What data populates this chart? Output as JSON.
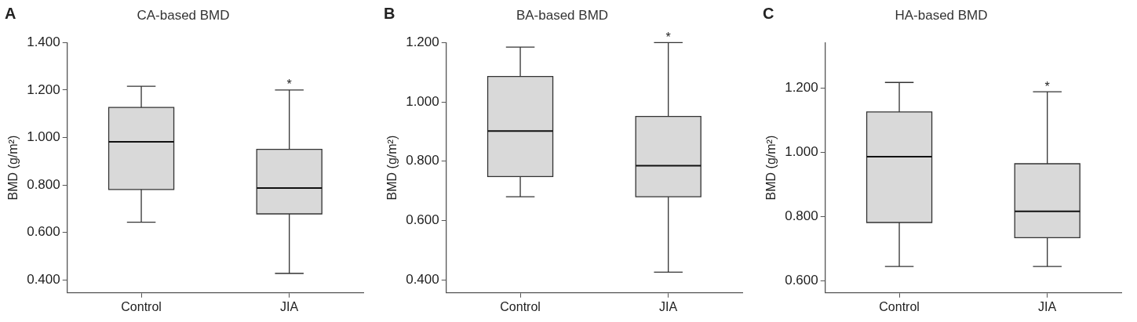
{
  "chart_data": [
    {
      "type": "box",
      "title": "CA-based BMD",
      "ylabel": "BMD (g/m²)",
      "categories": [
        "Control",
        "JIA"
      ],
      "color": "#d9d9d9",
      "grid": false,
      "ylim": [
        0.345,
        1.4
      ],
      "yticks": [
        {
          "value": 0.4,
          "label": "0.400"
        },
        {
          "value": 0.6,
          "label": "0.600"
        },
        {
          "value": 0.8,
          "label": "0.800"
        },
        {
          "value": 1.0,
          "label": "1.000"
        },
        {
          "value": 1.2,
          "label": "1.200"
        },
        {
          "value": 1.4,
          "label": "1.400"
        }
      ],
      "boxes": [
        {
          "low": 0.643,
          "q1": 0.781,
          "median": 0.982,
          "q3": 1.127,
          "high": 1.216
        },
        {
          "low": 0.427,
          "q1": 0.678,
          "median": 0.787,
          "q3": 0.95,
          "high": 1.2
        }
      ],
      "annotations": [
        "A",
        {
          "text": "*",
          "x": "JIA",
          "y": 1.2
        }
      ]
    },
    {
      "type": "box",
      "title": "BA-based BMD",
      "ylabel": "BMD (g/m²)",
      "categories": [
        "Control",
        "JIA"
      ],
      "color": "#d9d9d9",
      "grid": false,
      "ylim": [
        0.356,
        1.2
      ],
      "yticks": [
        {
          "value": 0.4,
          "label": "0.400"
        },
        {
          "value": 0.6,
          "label": "0.600"
        },
        {
          "value": 0.8,
          "label": "0.800"
        },
        {
          "value": 1.0,
          "label": "1.000"
        },
        {
          "value": 1.2,
          "label": "1.200"
        }
      ],
      "boxes": [
        {
          "low": 0.68,
          "q1": 0.748,
          "median": 0.902,
          "q3": 1.086,
          "high": 1.185
        },
        {
          "low": 0.426,
          "q1": 0.68,
          "median": 0.785,
          "q3": 0.951,
          "high": 1.2
        }
      ],
      "annotations": [
        "B",
        {
          "text": "*",
          "x": "JIA",
          "y": 1.2
        }
      ]
    },
    {
      "type": "box",
      "title": "HA-based BMD",
      "ylabel": "BMD (g/m²)",
      "categories": [
        "Control",
        "JIA"
      ],
      "color": "#d9d9d9",
      "grid": false,
      "ylim": [
        0.562,
        1.341
      ],
      "yticks": [
        {
          "value": 0.6,
          "label": "0.600"
        },
        {
          "value": 0.8,
          "label": "0.800"
        },
        {
          "value": 1.0,
          "label": "1.000"
        },
        {
          "value": 1.2,
          "label": "1.200"
        }
      ],
      "boxes": [
        {
          "low": 0.644,
          "q1": 0.781,
          "median": 0.986,
          "q3": 1.125,
          "high": 1.217
        },
        {
          "low": 0.644,
          "q1": 0.734,
          "median": 0.816,
          "q3": 0.964,
          "high": 1.188
        }
      ],
      "annotations": [
        "C",
        {
          "text": "*",
          "x": "JIA",
          "y": 1.188
        }
      ]
    }
  ]
}
